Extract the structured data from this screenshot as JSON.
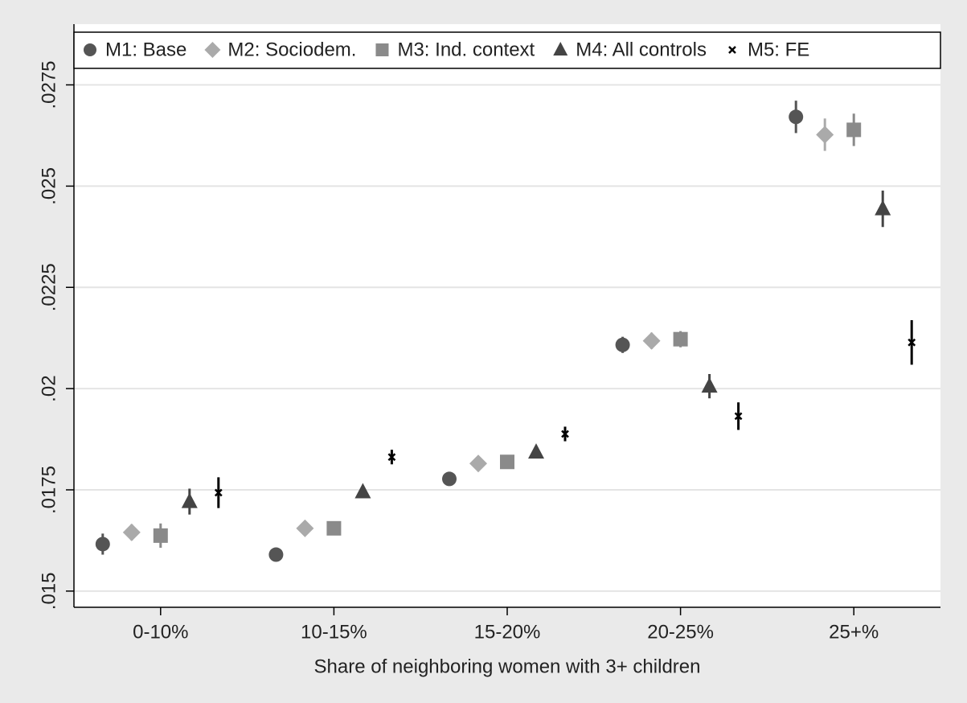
{
  "chart_data": {
    "type": "dot-errorbar",
    "x_label": "Share of neighboring women with 3+ children",
    "categories": [
      "0-10%",
      "10-15%",
      "15-20%",
      "20-25%",
      "25+%"
    ],
    "series": [
      {
        "name": "M1: Base",
        "color": "#555555",
        "marker": "circle",
        "values": [
          0.01616,
          0.0159,
          0.01777,
          0.02108,
          0.02671
        ],
        "errors": [
          0.00026,
          0.0001,
          0.00014,
          0.0002,
          0.0004
        ]
      },
      {
        "name": "M2: Sociodem.",
        "color": "#aaaaaa",
        "marker": "diamond",
        "values": [
          0.01645,
          0.01655,
          0.01815,
          0.02118,
          0.02627
        ],
        "errors": [
          0.0002,
          0.0001,
          0.0001,
          0.0002,
          0.0004
        ]
      },
      {
        "name": "M3: Ind. context",
        "color": "#8a8a8a",
        "marker": "square",
        "values": [
          0.01637,
          0.01655,
          0.01819,
          0.02122,
          0.02639
        ],
        "errors": [
          0.0003,
          0.0001,
          0.00012,
          0.0002,
          0.0004
        ]
      },
      {
        "name": "M4: All controls",
        "color": "#444444",
        "marker": "triangle",
        "values": [
          0.01721,
          0.01745,
          0.01843,
          0.02006,
          0.02444
        ],
        "errors": [
          0.00032,
          0.0001,
          0.00012,
          0.0003,
          0.00045
        ]
      },
      {
        "name": "M5: FE",
        "color": "#000000",
        "marker": "cross",
        "values": [
          0.01743,
          0.01831,
          0.01888,
          0.01932,
          0.02114
        ],
        "errors": [
          0.00038,
          0.00018,
          0.00018,
          0.00034,
          0.00055
        ]
      }
    ],
    "ylim": [
      0.0146,
      0.029
    ],
    "yticks": [
      {
        "value": 0.015,
        "label": ".015"
      },
      {
        "value": 0.0175,
        "label": ".0175"
      },
      {
        "value": 0.02,
        "label": ".02"
      },
      {
        "value": 0.0225,
        "label": ".0225"
      },
      {
        "value": 0.025,
        "label": ".025"
      },
      {
        "value": 0.0275,
        "label": ".0275"
      }
    ],
    "grid": true,
    "legend": "top"
  }
}
